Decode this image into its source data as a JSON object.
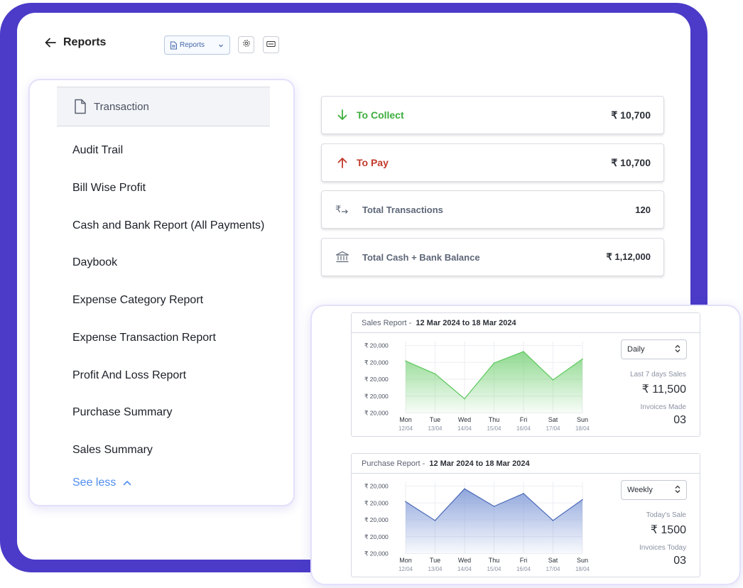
{
  "header": {
    "title": "Reports",
    "select_value": "Reports"
  },
  "sidebar": {
    "active": "Transaction",
    "items": [
      "Audit Trail",
      "Bill Wise Profit",
      "Cash and Bank Report (All Payments)",
      "Daybook",
      "Expense Category Report",
      "Expense Transaction Report",
      "Profit And Loss Report",
      "Purchase Summary",
      "Sales Summary"
    ],
    "see_less": "See less"
  },
  "summary": {
    "collect": {
      "label": "To Collect",
      "value": "₹ 10,700"
    },
    "pay": {
      "label": "To Pay",
      "value": "₹ 10,700"
    },
    "transactions": {
      "label": "Total Transactions",
      "value": "120"
    },
    "balance": {
      "label": "Total Cash + Bank Balance",
      "value": "₹ 1,12,000"
    }
  },
  "sales": {
    "title": "Sales Report",
    "range": "12 Mar 2024 to 18 Mar 2024",
    "period": "Daily",
    "stat1_label": "Last 7 days Sales",
    "stat1_value": "₹ 11,500",
    "stat2_label": "Invoices Made",
    "stat2_value": "03"
  },
  "purchase": {
    "title": "Purchase Report",
    "range": "12 Mar 2024 to 18 Mar 2024",
    "period": "Weekly",
    "stat1_label": "Today's Sale",
    "stat1_value": "₹ 1500",
    "stat2_label": "Invoices Today",
    "stat2_value": "03"
  },
  "colors": {
    "frame": "#4b3bc8",
    "green": "#3cae3c",
    "red": "#c2392b",
    "link": "#4f8df0",
    "sales_line": "#5cc85c",
    "purchase_line": "#4a6ab8"
  },
  "chart_data": [
    {
      "type": "area",
      "categories": [
        "Mon",
        "Tue",
        "Wed",
        "Thu",
        "Fri",
        "Sat",
        "Sun"
      ],
      "dates": [
        "12/04",
        "13/04",
        "14/04",
        "15/04",
        "16/04",
        "17/04",
        "18/04"
      ],
      "y_ticks": [
        "₹ 20,000",
        "₹ 20,000",
        "₹ 20,000",
        "₹ 20,000",
        "₹ 20,000"
      ],
      "values": [
        0.77,
        0.58,
        0.21,
        0.74,
        0.91,
        0.49,
        0.8
      ],
      "grid": true
    },
    {
      "type": "area",
      "categories": [
        "Mon",
        "Tue",
        "Wed",
        "Thu",
        "Fri",
        "Sat",
        "Sun"
      ],
      "dates": [
        "12/04",
        "13/04",
        "14/04",
        "15/04",
        "16/04",
        "17/04",
        "18/04"
      ],
      "y_ticks": [
        "₹ 20,000",
        "₹ 20,000",
        "₹ 20,000",
        "₹ 20,000",
        "₹ 20,000"
      ],
      "values": [
        0.77,
        0.49,
        0.96,
        0.7,
        0.89,
        0.49,
        0.8
      ],
      "grid": true
    }
  ]
}
